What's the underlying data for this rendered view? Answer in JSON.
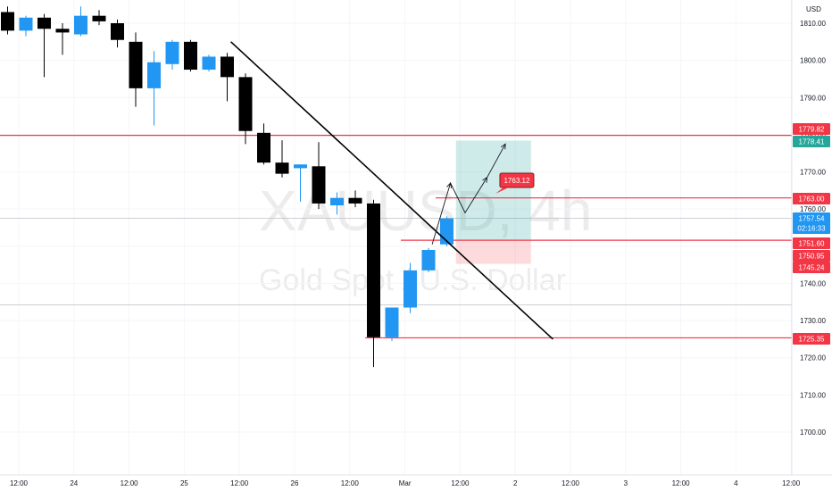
{
  "chart_data": {
    "type": "candlestick",
    "symbol_watermark": "XAUUSD, 4h",
    "name_watermark": "Gold Spot / U.S. Dollar",
    "currency": "USD",
    "ylim": [
      1695,
      1815
    ],
    "y_ticks": [
      1700,
      1710,
      1720,
      1730,
      1740,
      1750,
      1760,
      1770,
      1780,
      1790,
      1800,
      1810
    ],
    "y_tick_labels": [
      "1700.00",
      "1710.00",
      "1720.00",
      "1730.00",
      "1740.00",
      "1750.00",
      "1760.00",
      "1770.00",
      "1780.00",
      "1790.00",
      "1800.00",
      "1810.00"
    ],
    "x_ticks": [
      "12:00",
      "24",
      "12:00",
      "25",
      "12:00",
      "26",
      "12:00",
      "Mar",
      "12:00",
      "2",
      "12:00",
      "3",
      "12:00",
      "4",
      "12:00"
    ],
    "up_color": "#2196f3",
    "down_color": "#000000",
    "candles": [
      {
        "o": 1813.0,
        "h": 1814.5,
        "l": 1807.0,
        "c": 1808.0
      },
      {
        "o": 1808.0,
        "h": 1812.0,
        "l": 1806.5,
        "c": 1811.5
      },
      {
        "o": 1811.5,
        "h": 1812.5,
        "l": 1795.5,
        "c": 1808.5
      },
      {
        "o": 1808.5,
        "h": 1810.0,
        "l": 1801.5,
        "c": 1807.5
      },
      {
        "o": 1807.0,
        "h": 1814.5,
        "l": 1806.5,
        "c": 1812.0
      },
      {
        "o": 1812.0,
        "h": 1813.5,
        "l": 1809.5,
        "c": 1810.5
      },
      {
        "o": 1810.0,
        "h": 1811.0,
        "l": 1803.5,
        "c": 1805.5
      },
      {
        "o": 1805.0,
        "h": 1807.5,
        "l": 1787.5,
        "c": 1792.5
      },
      {
        "o": 1792.5,
        "h": 1802.5,
        "l": 1782.5,
        "c": 1799.5
      },
      {
        "o": 1799.0,
        "h": 1805.5,
        "l": 1797.5,
        "c": 1805.0
      },
      {
        "o": 1805.0,
        "h": 1805.5,
        "l": 1797.0,
        "c": 1797.5
      },
      {
        "o": 1797.5,
        "h": 1801.5,
        "l": 1797.0,
        "c": 1801.0
      },
      {
        "o": 1801.0,
        "h": 1802.0,
        "l": 1789.0,
        "c": 1795.5
      },
      {
        "o": 1795.5,
        "h": 1796.5,
        "l": 1777.5,
        "c": 1781.0
      },
      {
        "o": 1780.5,
        "h": 1783.0,
        "l": 1772.0,
        "c": 1772.5
      },
      {
        "o": 1772.5,
        "h": 1778.5,
        "l": 1768.5,
        "c": 1769.5
      },
      {
        "o": 1771.0,
        "h": 1772.0,
        "l": 1762.0,
        "c": 1772.0
      },
      {
        "o": 1771.5,
        "h": 1778.0,
        "l": 1760.0,
        "c": 1761.5
      },
      {
        "o": 1761.0,
        "h": 1764.5,
        "l": 1758.5,
        "c": 1763.0
      },
      {
        "o": 1763.0,
        "h": 1765.0,
        "l": 1760.5,
        "c": 1761.5
      },
      {
        "o": 1761.5,
        "h": 1762.5,
        "l": 1717.5,
        "c": 1725.5
      },
      {
        "o": 1725.5,
        "h": 1733.5,
        "l": 1724.5,
        "c": 1733.5
      },
      {
        "o": 1733.5,
        "h": 1745.5,
        "l": 1732.0,
        "c": 1743.5
      },
      {
        "o": 1743.5,
        "h": 1749.5,
        "l": 1743.0,
        "c": 1749.0
      },
      {
        "o": 1750.5,
        "h": 1758.0,
        "l": 1750.0,
        "c": 1757.5
      }
    ],
    "horizontal_lines": [
      {
        "price": 1779.82,
        "label": "1779.82",
        "color": "#f23645"
      },
      {
        "price": 1763.0,
        "label": "1763.00",
        "color": "#f23645"
      },
      {
        "price": 1751.6,
        "label": "1751.60",
        "color": "#f23645"
      },
      {
        "price": 1725.35,
        "label": "1725.35",
        "color": "#f23645"
      }
    ],
    "faint_lines": [
      1757.54,
      1734.2
    ],
    "trendline": {
      "from": {
        "candle": 12.2,
        "price": 1805.0
      },
      "to": {
        "candle": 29.8,
        "price": 1725.0
      }
    },
    "position": {
      "entry": 1751.6,
      "target": 1778.41,
      "stop": 1745.24,
      "start_candle": 24.5,
      "end_candle": 28.6
    },
    "projection": [
      {
        "candle": 23.2,
        "price": 1750.5
      },
      {
        "candle": 24.2,
        "price": 1767.0
      },
      {
        "candle": 25.0,
        "price": 1759.0
      },
      {
        "candle": 26.2,
        "price": 1768.5
      },
      {
        "candle": 27.2,
        "price": 1777.5
      }
    ],
    "callout": {
      "text": "1763.12",
      "candle": 26.9,
      "price": 1767.5,
      "color": "#f23645"
    },
    "price_tags": [
      {
        "text": "1779.82",
        "price": 1779.82,
        "color": "#f23645"
      },
      {
        "text": "1778.41",
        "price": 1778.41,
        "color": "#26a69a"
      },
      {
        "text": "1763.00",
        "price": 1763.0,
        "color": "#f23645"
      },
      {
        "text": "1757.54",
        "price": 1757.54,
        "color": "#2196f3",
        "sub": "02:16:33"
      },
      {
        "text": "1751.60",
        "price": 1751.6,
        "color": "#f23645"
      },
      {
        "text": "1750.95",
        "price": 1750.95,
        "color": "#f23645"
      },
      {
        "text": "1745.24",
        "price": 1745.24,
        "color": "#f23645"
      },
      {
        "text": "1725.35",
        "price": 1725.35,
        "color": "#f23645"
      }
    ]
  }
}
